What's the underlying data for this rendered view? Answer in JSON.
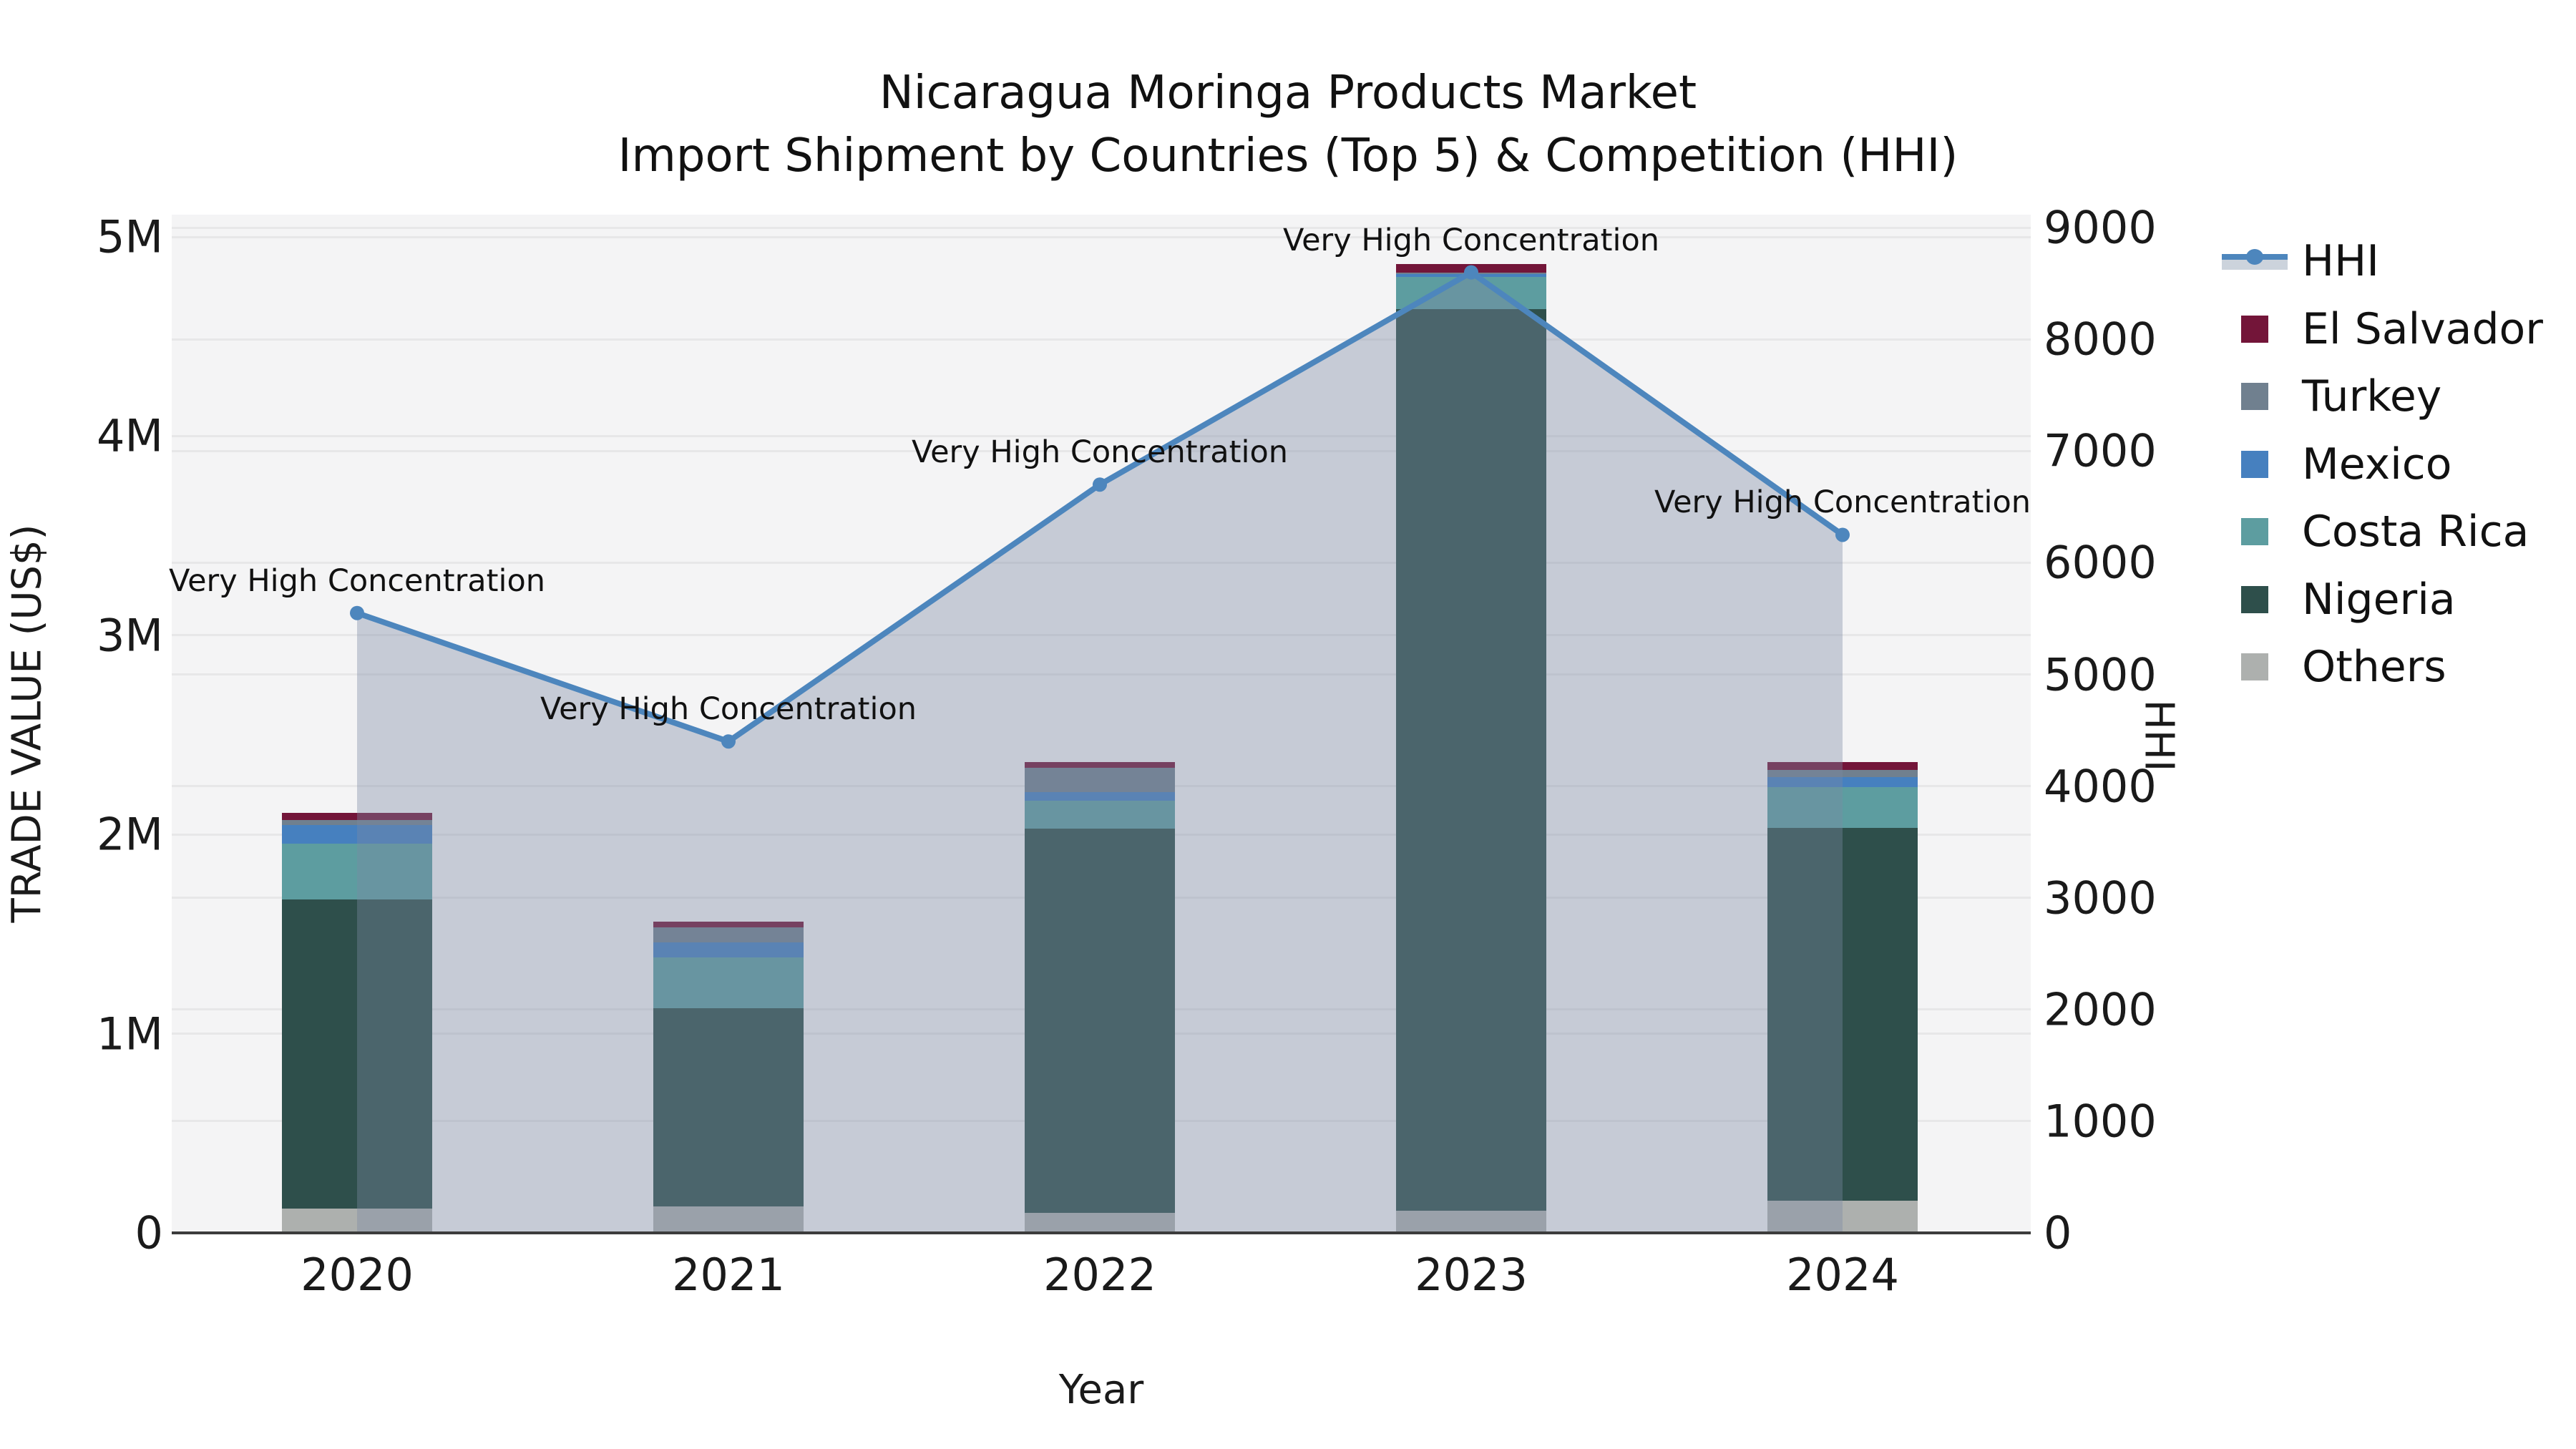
{
  "title": {
    "line1": "Nicaragua Moringa Products Market",
    "line2": "Import Shipment by Countries (Top 5) & Competition (HHI)"
  },
  "axes": {
    "x": {
      "title": "Year",
      "ticks": [
        "2020",
        "2021",
        "2022",
        "2023",
        "2024"
      ]
    },
    "y_left": {
      "title": "TRADE VALUE (US$)",
      "ticks": [
        {
          "label": "0",
          "value": 0
        },
        {
          "label": "1M",
          "value": 1000000
        },
        {
          "label": "2M",
          "value": 2000000
        },
        {
          "label": "3M",
          "value": 3000000
        },
        {
          "label": "4M",
          "value": 4000000
        },
        {
          "label": "5M",
          "value": 5000000
        }
      ],
      "ylim": [
        0,
        5000000
      ]
    },
    "y_right": {
      "title": "HHI",
      "ticks": [
        {
          "label": "0",
          "value": 0
        },
        {
          "label": "1000",
          "value": 1000
        },
        {
          "label": "2000",
          "value": 2000
        },
        {
          "label": "3000",
          "value": 3000
        },
        {
          "label": "4000",
          "value": 4000
        },
        {
          "label": "5000",
          "value": 5000
        },
        {
          "label": "6000",
          "value": 6000
        },
        {
          "label": "7000",
          "value": 7000
        },
        {
          "label": "8000",
          "value": 8000
        },
        {
          "label": "9000",
          "value": 9000
        }
      ],
      "ylim": [
        0,
        9000
      ]
    }
  },
  "colors": {
    "plot_background": "#f4f4f5",
    "figure_background": "#ffffff",
    "gridline": "rgba(0,0,0,0.05)",
    "hhi_line": "#4d86bd",
    "hhi_area_fill": "rgba(124,138,164,0.38)",
    "bottom_spine": "#3c3c3c"
  },
  "chart_data": {
    "type": "bar+line",
    "categories": [
      "2020",
      "2021",
      "2022",
      "2023",
      "2024"
    ],
    "stack_order_bottom_to_top": [
      "Others",
      "Nigeria",
      "Costa Rica",
      "Mexico",
      "Turkey",
      "El Salvador"
    ],
    "bar_value_unit": "US$",
    "series": [
      {
        "name": "HHI",
        "type": "line",
        "axis": "right",
        "color": "#4d86bd",
        "values": [
          5550,
          4400,
          6700,
          8600,
          6250
        ],
        "area_fill": true,
        "annotations": [
          "Very High Concentration",
          "Very High Concentration",
          "Very High Concentration",
          "Very High Concentration",
          "Very High Concentration"
        ]
      },
      {
        "name": "El Salvador",
        "type": "bar",
        "axis": "left",
        "color": "#731539",
        "values": [
          36000,
          29000,
          27000,
          44000,
          40000
        ]
      },
      {
        "name": "Turkey",
        "type": "bar",
        "axis": "left",
        "color": "#70808f",
        "values": [
          22000,
          75000,
          124000,
          5000,
          36000
        ]
      },
      {
        "name": "Mexico",
        "type": "bar",
        "axis": "left",
        "color": "#4680bf",
        "values": [
          94000,
          75000,
          43000,
          15000,
          53000
        ]
      },
      {
        "name": "Costa Rica",
        "type": "bar",
        "axis": "left",
        "color": "#5d9da0",
        "values": [
          281000,
          256000,
          137000,
          162000,
          202000
        ]
      },
      {
        "name": "Nigeria",
        "type": "bar",
        "axis": "left",
        "color": "#2e4f4b",
        "values": [
          1552000,
          994000,
          1931000,
          4525000,
          1872000
        ]
      },
      {
        "name": "Others",
        "type": "bar",
        "axis": "left",
        "color": "#adb0ae",
        "values": [
          122000,
          133000,
          100000,
          112000,
          162000
        ]
      }
    ],
    "title": "Nicaragua Moringa Products Market — Import Shipment by Countries (Top 5) & Competition (HHI)",
    "xlabel": "Year",
    "ylabel_left": "TRADE VALUE (US$)",
    "ylabel_right": "HHI",
    "ylim_left": [
      0,
      5000000
    ],
    "ylim_right": [
      0,
      9000
    ],
    "grid": true,
    "legend_position": "right",
    "legend_order": [
      "HHI",
      "El Salvador",
      "Turkey",
      "Mexico",
      "Costa Rica",
      "Nigeria",
      "Others"
    ]
  }
}
